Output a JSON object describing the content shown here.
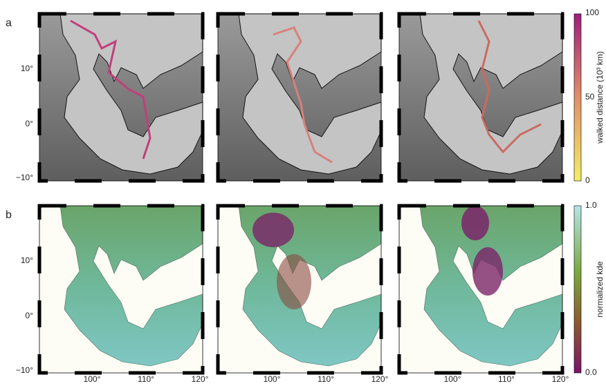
{
  "panel_labels": [
    "a",
    "b"
  ],
  "lat_labels": [
    "10°",
    "0°",
    "−10°"
  ],
  "lon_labels": [
    "100°",
    "110°",
    "120°"
  ],
  "colorbars": [
    {
      "title": "walked distance (10³ km)",
      "ticks": [
        "100",
        "50",
        "0"
      ]
    },
    {
      "title": "normalized kde",
      "ticks": [
        "1.0",
        "0.0"
      ]
    }
  ]
}
